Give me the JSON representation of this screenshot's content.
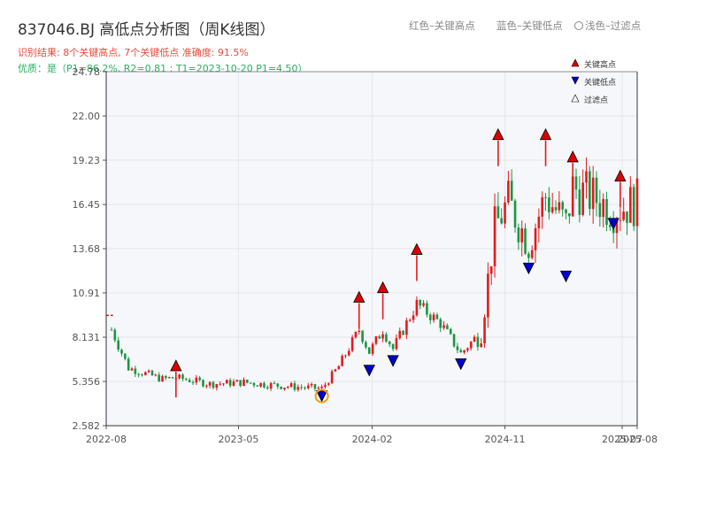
{
  "header": {
    "title": "837046.BJ 高低点分析图（周K线图）",
    "result": "识别结果: 8个关键高点, 7个关键低点  准确度: 91.5%",
    "quality": "优质：是（P1=86.2%, R2=0.81 ; T1=2023-10-20 P1=4.50）"
  },
  "top_legend": {
    "red": "红色–关键高点",
    "blue": "蓝色–关键低点",
    "light": "浅色–过滤点"
  },
  "chart_data": {
    "type": "candlestick",
    "title": "837046.BJ 高低点分析图（周K线图）",
    "y_ticks": [
      "2.582",
      "5.356",
      "8.131",
      "10.91",
      "13.68",
      "16.45",
      "19.23",
      "22.00",
      "24.78"
    ],
    "ylim": [
      2.582,
      24.78
    ],
    "x_ticks": [
      "2022-08",
      "2023-05",
      "2024-02",
      "2024-11",
      "2025-07",
      "2025-08"
    ],
    "grid": true,
    "legend": {
      "position": "top-right",
      "entries": [
        "关键高点",
        "关键低点",
        "过滤点"
      ]
    },
    "colors": {
      "up": "#e31a1c",
      "down": "#1a9641",
      "key_high": "#dd0000",
      "key_low": "#0000cc",
      "filtered_marker": "#f39c12"
    },
    "key_highs": [
      {
        "date": "2022-12-23",
        "value": 6.3
      },
      {
        "date": "2024-01-05",
        "value": 10.6
      },
      {
        "date": "2024-02-23",
        "value": 11.2
      },
      {
        "date": "2024-05-03",
        "value": 13.6
      },
      {
        "date": "2024-10-18",
        "value": 20.8
      },
      {
        "date": "2025-01-24",
        "value": 20.8
      },
      {
        "date": "2025-03-21",
        "value": 19.4
      },
      {
        "date": "2025-06-27",
        "value": 18.2
      }
    ],
    "key_lows": [
      {
        "date": "2023-10-20",
        "value": 4.5
      },
      {
        "date": "2024-01-26",
        "value": 6.1
      },
      {
        "date": "2024-03-15",
        "value": 6.7
      },
      {
        "date": "2024-08-02",
        "value": 6.5
      },
      {
        "date": "2024-12-20",
        "value": 12.5
      },
      {
        "date": "2025-03-07",
        "value": 12.0
      },
      {
        "date": "2025-06-13",
        "value": 15.3
      }
    ],
    "filtered_points": [
      {
        "date": "2023-10-20",
        "value": 4.5
      }
    ],
    "reference_line": {
      "date_from": "2022-07-01",
      "date_to": "2022-08-15",
      "value": 9.5
    }
  }
}
